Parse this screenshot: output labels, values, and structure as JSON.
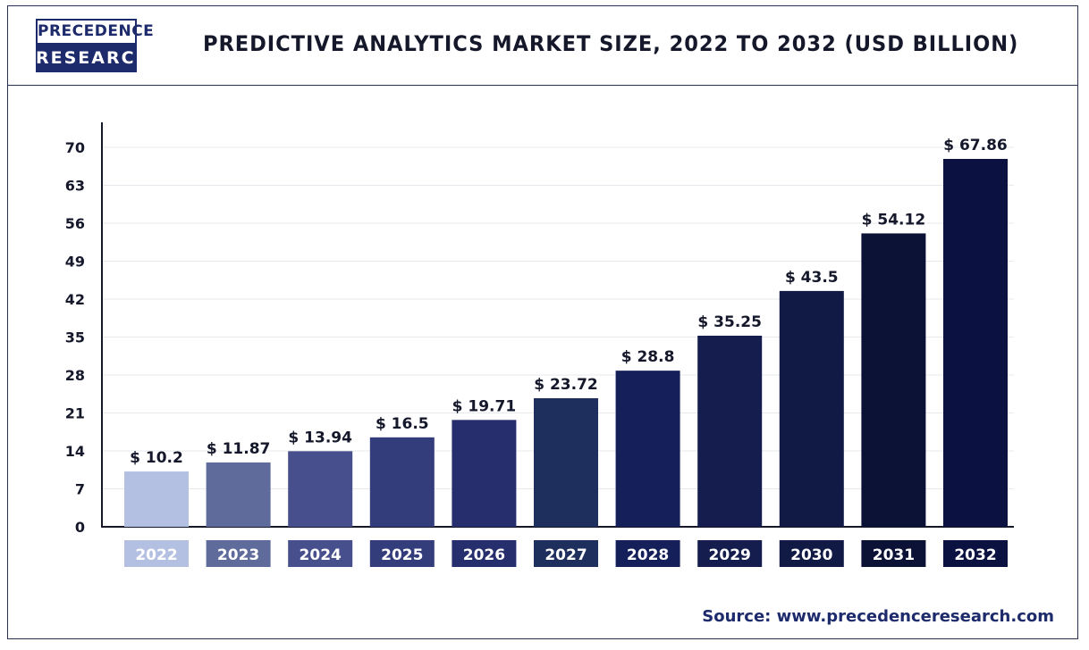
{
  "logo": {
    "line1": "PRECEDENCE",
    "line2": "RESEARCH"
  },
  "source": "Source: www.precedenceresearch.com",
  "chart_data": {
    "type": "bar",
    "title": "PREDICTIVE ANALYTICS MARKET SIZE, 2022 TO 2032 (USD BILLION)",
    "xlabel": "",
    "ylabel": "",
    "categories": [
      "2022",
      "2023",
      "2024",
      "2025",
      "2026",
      "2027",
      "2028",
      "2029",
      "2030",
      "2031",
      "2032"
    ],
    "values": [
      10.2,
      11.87,
      13.94,
      16.5,
      19.71,
      23.72,
      28.8,
      35.25,
      43.5,
      54.12,
      67.86
    ],
    "data_labels": [
      "$ 10.2",
      "$ 11.87",
      "$ 13.94",
      "$ 16.5",
      "$ 19.71",
      "$ 23.72",
      "$ 28.8",
      "$ 35.25",
      "$ 43.5",
      "$ 54.12",
      "$ 67.86"
    ],
    "ylim": [
      0,
      70
    ],
    "yticks": [
      0,
      7,
      14,
      21,
      28,
      35,
      42,
      49,
      56,
      63,
      70
    ],
    "grid": true,
    "legend": "none",
    "colors": [
      "#b3c0e2",
      "#5f6b9b",
      "#474f8c",
      "#333d7c",
      "#262e6d",
      "#1e2f5e",
      "#15205a",
      "#141d4d",
      "#111a45",
      "#0c1136",
      "#0b1242"
    ]
  }
}
